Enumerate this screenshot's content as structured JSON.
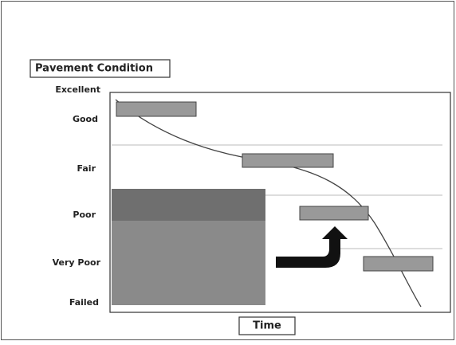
{
  "y_axis": {
    "title": "Pavement Condition",
    "levels": [
      "Excellent",
      "Good",
      "Fair",
      "Poor",
      "Very Poor",
      "Failed"
    ]
  },
  "x_axis": {
    "title": "Time"
  }
}
